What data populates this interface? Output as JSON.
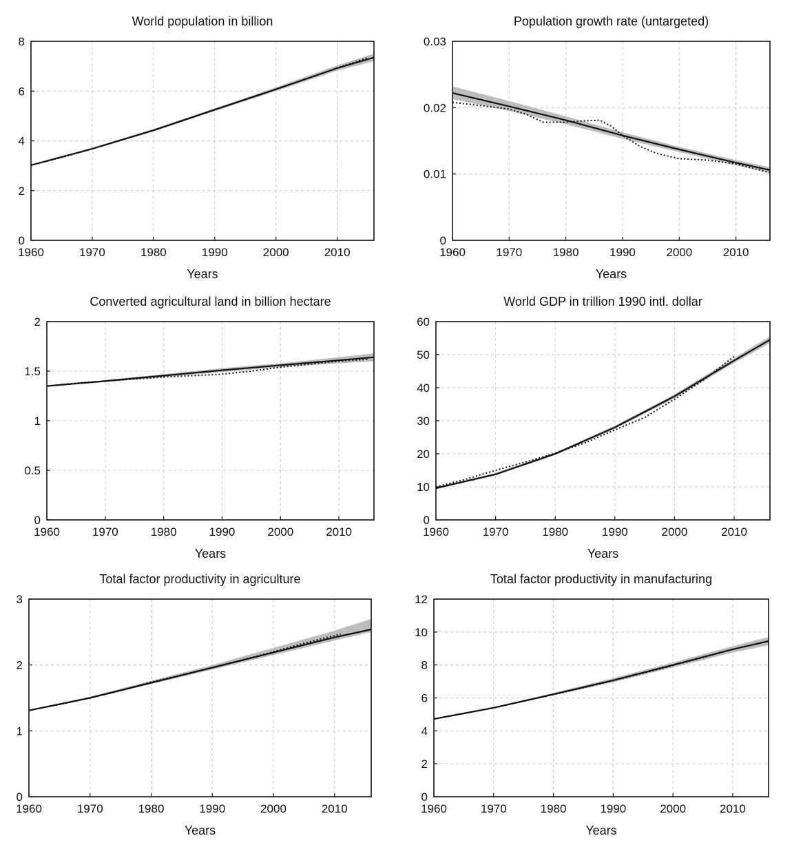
{
  "chart_data": [
    {
      "type": "line",
      "title": "World population in billion",
      "xlabel": "Years",
      "ylabel": "",
      "xlim": [
        1960,
        2016
      ],
      "ylim": [
        0,
        8
      ],
      "xticks": [
        1960,
        1970,
        1980,
        1990,
        2000,
        2010
      ],
      "yticks": [
        0,
        2,
        4,
        6,
        8
      ],
      "ytick_labels": [
        "0",
        "2",
        "4",
        "6",
        "8"
      ],
      "grid": true,
      "band": {
        "x": [
          1960,
          1970,
          1980,
          1990,
          2000,
          2010,
          2016
        ],
        "lower": [
          3.0,
          3.65,
          4.38,
          5.2,
          6.0,
          6.82,
          7.2
        ],
        "upper": [
          3.05,
          3.72,
          4.48,
          5.3,
          6.15,
          7.03,
          7.5
        ]
      },
      "series": [
        {
          "x": [
            1960,
            1970,
            1980,
            1990,
            2000,
            2010,
            2016
          ],
          "values": [
            3.02,
            3.68,
            4.42,
            5.25,
            6.07,
            6.92,
            7.35
          ]
        },
        {
          "x": [
            1960,
            1965,
            1970,
            1975,
            1980,
            1985,
            1990,
            1995,
            2000,
            2005,
            2010,
            2015
          ],
          "values": [
            3.02,
            3.33,
            3.68,
            4.05,
            4.43,
            4.84,
            5.26,
            5.67,
            6.08,
            6.5,
            6.93,
            7.34
          ]
        }
      ]
    },
    {
      "type": "line",
      "title": "Population growth rate (untargeted)",
      "xlabel": "Years",
      "ylabel": "",
      "xlim": [
        1960,
        2016
      ],
      "ylim": [
        0,
        0.03
      ],
      "xticks": [
        1960,
        1970,
        1980,
        1990,
        2000,
        2010
      ],
      "yticks": [
        0,
        0.01,
        0.02,
        0.03
      ],
      "ytick_labels": [
        "0",
        "0.01",
        "0.02",
        "0.03"
      ],
      "grid": true,
      "band": {
        "x": [
          1960,
          1970,
          1980,
          1990,
          2000,
          2010,
          2016
        ],
        "lower": [
          0.0213,
          0.0195,
          0.0175,
          0.0153,
          0.0133,
          0.0113,
          0.0102
        ],
        "upper": [
          0.0232,
          0.021,
          0.0187,
          0.0163,
          0.0141,
          0.0121,
          0.011
        ]
      },
      "series": [
        {
          "x": [
            1960,
            1970,
            1980,
            1990,
            2000,
            2010,
            2016
          ],
          "values": [
            0.0222,
            0.0202,
            0.0181,
            0.0158,
            0.0137,
            0.0117,
            0.0106
          ]
        },
        {
          "x": [
            1960,
            1965,
            1970,
            1973,
            1976,
            1980,
            1983,
            1986,
            1988,
            1990,
            1993,
            1996,
            2000,
            2005,
            2010,
            2016
          ],
          "values": [
            0.0208,
            0.0203,
            0.0198,
            0.019,
            0.0178,
            0.0178,
            0.018,
            0.0181,
            0.0172,
            0.0158,
            0.0142,
            0.0131,
            0.0123,
            0.0121,
            0.0115,
            0.0102
          ]
        }
      ]
    },
    {
      "type": "line",
      "title": "Converted agricultural land in billion hectare",
      "xlabel": "Years",
      "ylabel": "",
      "xlim": [
        1960,
        2016
      ],
      "ylim": [
        0,
        2
      ],
      "xticks": [
        1960,
        1970,
        1980,
        1990,
        2000,
        2010
      ],
      "yticks": [
        0,
        0.5,
        1,
        1.5,
        2
      ],
      "ytick_labels": [
        "0",
        "0.5",
        "1",
        "1.5",
        "2"
      ],
      "grid": true,
      "band": {
        "x": [
          1960,
          1970,
          1980,
          1990,
          2000,
          2010,
          2016
        ],
        "lower": [
          1.345,
          1.39,
          1.44,
          1.49,
          1.54,
          1.58,
          1.6
        ],
        "upper": [
          1.355,
          1.41,
          1.47,
          1.53,
          1.58,
          1.64,
          1.68
        ]
      },
      "series": [
        {
          "x": [
            1960,
            1970,
            1980,
            1990,
            2000,
            2010,
            2016
          ],
          "values": [
            1.35,
            1.4,
            1.455,
            1.51,
            1.56,
            1.61,
            1.64
          ]
        },
        {
          "x": [
            1960,
            1965,
            1970,
            1975,
            1980,
            1985,
            1990,
            1995,
            2000,
            2005,
            2010,
            2015
          ],
          "values": [
            1.35,
            1.38,
            1.4,
            1.42,
            1.44,
            1.455,
            1.47,
            1.5,
            1.54,
            1.57,
            1.6,
            1.62
          ]
        }
      ]
    },
    {
      "type": "line",
      "title": "World GDP in trillion 1990 intl. dollar",
      "xlabel": "Years",
      "ylabel": "",
      "xlim": [
        1960,
        2016
      ],
      "ylim": [
        0,
        60
      ],
      "xticks": [
        1960,
        1970,
        1980,
        1990,
        2000,
        2010
      ],
      "yticks": [
        0,
        10,
        20,
        30,
        40,
        50,
        60
      ],
      "ytick_labels": [
        "0",
        "10",
        "20",
        "30",
        "40",
        "50",
        "60"
      ],
      "grid": true,
      "band": {
        "x": [
          1960,
          1970,
          1980,
          1990,
          2000,
          2010,
          2016
        ],
        "lower": [
          9.3,
          13.5,
          19.6,
          27.5,
          36.8,
          47.5,
          53.5
        ],
        "upper": [
          9.9,
          14.2,
          20.4,
          28.5,
          38.0,
          49.0,
          55.5
        ]
      },
      "series": [
        {
          "x": [
            1960,
            1970,
            1980,
            1990,
            2000,
            2010,
            2016
          ],
          "values": [
            9.6,
            13.8,
            20.0,
            28.0,
            37.4,
            48.2,
            54.5
          ]
        },
        {
          "x": [
            1960,
            1965,
            1970,
            1975,
            1980,
            1985,
            1990,
            1995,
            2000,
            2005,
            2010
          ],
          "values": [
            10.0,
            12.3,
            15.0,
            17.5,
            20.2,
            23.3,
            27.2,
            31.0,
            36.5,
            42.5,
            49.5
          ]
        }
      ]
    },
    {
      "type": "line",
      "title": "Total factor productivity in agriculture",
      "xlabel": "Years",
      "ylabel": "",
      "xlim": [
        1960,
        2016
      ],
      "ylim": [
        0,
        3
      ],
      "xticks": [
        1960,
        1970,
        1980,
        1990,
        2000,
        2010
      ],
      "yticks": [
        0,
        1,
        2,
        3
      ],
      "ytick_labels": [
        "0",
        "1",
        "2",
        "3"
      ],
      "grid": true,
      "band": {
        "x": [
          1960,
          1970,
          1980,
          1990,
          2000,
          2010,
          2016
        ],
        "lower": [
          1.3,
          1.49,
          1.71,
          1.93,
          2.15,
          2.37,
          2.5
        ],
        "upper": [
          1.32,
          1.52,
          1.76,
          2.0,
          2.26,
          2.52,
          2.7
        ]
      },
      "series": [
        {
          "x": [
            1960,
            1970,
            1980,
            1990,
            2000,
            2010,
            2016
          ],
          "values": [
            1.31,
            1.5,
            1.73,
            1.96,
            2.19,
            2.42,
            2.54
          ]
        },
        {
          "x": [
            1960,
            1965,
            1970,
            1975,
            1980,
            1985,
            1990,
            1995,
            2000,
            2005,
            2011
          ],
          "values": [
            1.31,
            1.4,
            1.5,
            1.61,
            1.74,
            1.85,
            1.96,
            2.08,
            2.2,
            2.33,
            2.47
          ]
        }
      ]
    },
    {
      "type": "line",
      "title": "Total factor productivity in manufacturing",
      "xlabel": "Years",
      "ylabel": "",
      "xlim": [
        1960,
        2016
      ],
      "ylim": [
        0,
        12
      ],
      "xticks": [
        1960,
        1970,
        1980,
        1990,
        2000,
        2010
      ],
      "yticks": [
        0,
        2,
        4,
        6,
        8,
        10,
        12
      ],
      "ytick_labels": [
        "0",
        "2",
        "4",
        "6",
        "8",
        "10",
        "12"
      ],
      "grid": true,
      "band": {
        "x": [
          1960,
          1970,
          1980,
          1990,
          2000,
          2010,
          2016
        ],
        "lower": [
          4.68,
          5.35,
          6.15,
          6.95,
          7.85,
          8.75,
          9.2
        ],
        "upper": [
          4.75,
          5.45,
          6.3,
          7.2,
          8.15,
          9.15,
          9.7
        ]
      },
      "series": [
        {
          "x": [
            1960,
            1970,
            1980,
            1990,
            2000,
            2010,
            2016
          ],
          "values": [
            4.72,
            5.4,
            6.22,
            7.07,
            8.0,
            8.95,
            9.45
          ]
        },
        {
          "x": [
            1960,
            1965,
            1970,
            1975,
            1980,
            1985,
            1990,
            1995,
            2000,
            2005,
            2010
          ],
          "values": [
            4.72,
            5.05,
            5.4,
            5.8,
            6.2,
            6.62,
            7.05,
            7.5,
            7.97,
            8.45,
            8.95
          ]
        }
      ]
    }
  ]
}
